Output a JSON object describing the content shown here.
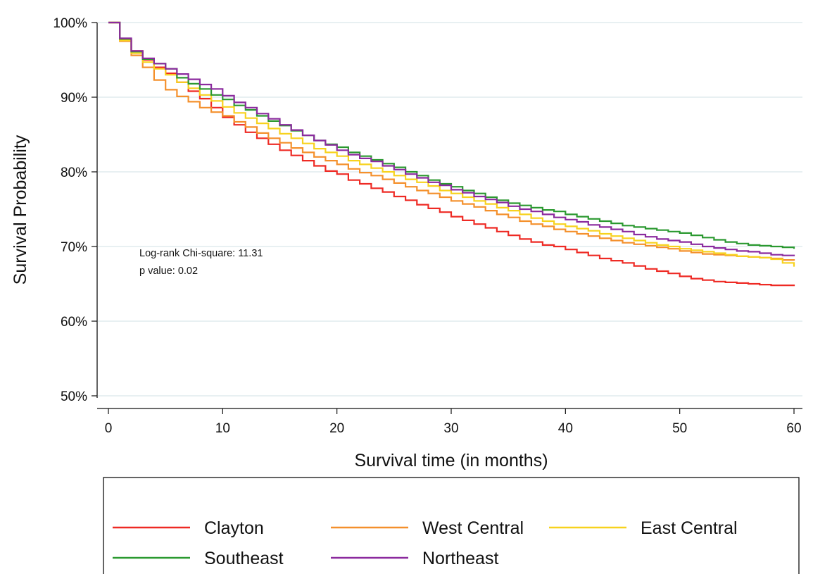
{
  "chart_data": {
    "type": "line",
    "title": "",
    "xlabel": "Survival time (in months)",
    "ylabel": "Survival Probability",
    "xlim": [
      0,
      60
    ],
    "ylim": [
      0.5,
      1.0
    ],
    "xticks": [
      0,
      10,
      20,
      30,
      40,
      50,
      60
    ],
    "yticks": [
      {
        "value": 0.5,
        "label": "50%"
      },
      {
        "value": 0.6,
        "label": "60%"
      },
      {
        "value": 0.7,
        "label": "70%"
      },
      {
        "value": 0.8,
        "label": "80%"
      },
      {
        "value": 0.9,
        "label": "90%"
      },
      {
        "value": 1.0,
        "label": "100%"
      }
    ],
    "grid": "horizontal",
    "step": true,
    "legend_position": "bottom",
    "x": [
      0,
      1,
      2,
      3,
      4,
      5,
      6,
      7,
      8,
      9,
      10,
      11,
      12,
      13,
      14,
      15,
      16,
      17,
      18,
      19,
      20,
      21,
      22,
      23,
      24,
      25,
      26,
      27,
      28,
      29,
      30,
      31,
      32,
      33,
      34,
      35,
      36,
      37,
      38,
      39,
      40,
      41,
      42,
      43,
      44,
      45,
      46,
      47,
      48,
      49,
      50,
      51,
      52,
      53,
      54,
      55,
      56,
      57,
      58,
      59,
      60
    ],
    "series": [
      {
        "name": "Clayton",
        "color": "#ee2a24",
        "values": [
          1.0,
          0.977,
          0.962,
          0.95,
          0.94,
          0.932,
          0.92,
          0.908,
          0.898,
          0.886,
          0.873,
          0.863,
          0.853,
          0.845,
          0.837,
          0.829,
          0.822,
          0.815,
          0.808,
          0.801,
          0.797,
          0.789,
          0.784,
          0.778,
          0.773,
          0.767,
          0.762,
          0.756,
          0.751,
          0.746,
          0.74,
          0.735,
          0.73,
          0.725,
          0.72,
          0.715,
          0.71,
          0.706,
          0.702,
          0.7,
          0.696,
          0.692,
          0.688,
          0.684,
          0.681,
          0.678,
          0.674,
          0.67,
          0.667,
          0.664,
          0.66,
          0.657,
          0.655,
          0.653,
          0.652,
          0.651,
          0.65,
          0.649,
          0.648,
          0.648,
          0.647
        ]
      },
      {
        "name": "West Central",
        "color": "#f4902c",
        "values": [
          1.0,
          0.975,
          0.956,
          0.94,
          0.923,
          0.91,
          0.901,
          0.894,
          0.886,
          0.88,
          0.875,
          0.867,
          0.86,
          0.852,
          0.845,
          0.839,
          0.832,
          0.826,
          0.82,
          0.815,
          0.81,
          0.804,
          0.799,
          0.795,
          0.79,
          0.785,
          0.78,
          0.775,
          0.771,
          0.766,
          0.761,
          0.757,
          0.753,
          0.748,
          0.743,
          0.739,
          0.734,
          0.73,
          0.727,
          0.723,
          0.72,
          0.717,
          0.714,
          0.711,
          0.708,
          0.705,
          0.703,
          0.701,
          0.699,
          0.697,
          0.694,
          0.692,
          0.69,
          0.689,
          0.688,
          0.687,
          0.686,
          0.685,
          0.684,
          0.682,
          0.681
        ]
      },
      {
        "name": "East Central",
        "color": "#f7d21e",
        "values": [
          1.0,
          0.976,
          0.959,
          0.947,
          0.938,
          0.93,
          0.92,
          0.912,
          0.903,
          0.895,
          0.887,
          0.879,
          0.872,
          0.865,
          0.858,
          0.851,
          0.845,
          0.838,
          0.831,
          0.826,
          0.821,
          0.815,
          0.81,
          0.805,
          0.8,
          0.795,
          0.79,
          0.786,
          0.781,
          0.775,
          0.771,
          0.766,
          0.761,
          0.757,
          0.752,
          0.748,
          0.743,
          0.738,
          0.734,
          0.73,
          0.727,
          0.724,
          0.721,
          0.717,
          0.714,
          0.711,
          0.708,
          0.705,
          0.702,
          0.7,
          0.697,
          0.695,
          0.693,
          0.691,
          0.689,
          0.687,
          0.686,
          0.685,
          0.683,
          0.678,
          0.673
        ]
      },
      {
        "name": "Southeast",
        "color": "#2b9930",
        "values": [
          1.0,
          0.978,
          0.961,
          0.951,
          0.945,
          0.938,
          0.926,
          0.918,
          0.911,
          0.903,
          0.897,
          0.889,
          0.883,
          0.875,
          0.868,
          0.862,
          0.855,
          0.849,
          0.842,
          0.837,
          0.833,
          0.826,
          0.821,
          0.816,
          0.811,
          0.806,
          0.8,
          0.795,
          0.789,
          0.784,
          0.78,
          0.775,
          0.771,
          0.766,
          0.762,
          0.758,
          0.755,
          0.752,
          0.749,
          0.747,
          0.743,
          0.74,
          0.737,
          0.734,
          0.731,
          0.728,
          0.726,
          0.724,
          0.722,
          0.72,
          0.718,
          0.715,
          0.712,
          0.709,
          0.706,
          0.704,
          0.702,
          0.701,
          0.7,
          0.699,
          0.697
        ]
      },
      {
        "name": "Northeast",
        "color": "#8b2a9e",
        "values": [
          1.0,
          0.979,
          0.962,
          0.952,
          0.945,
          0.938,
          0.931,
          0.924,
          0.917,
          0.911,
          0.902,
          0.893,
          0.886,
          0.878,
          0.871,
          0.863,
          0.856,
          0.849,
          0.842,
          0.836,
          0.829,
          0.823,
          0.818,
          0.814,
          0.808,
          0.803,
          0.797,
          0.792,
          0.786,
          0.782,
          0.776,
          0.772,
          0.767,
          0.763,
          0.759,
          0.754,
          0.75,
          0.747,
          0.743,
          0.739,
          0.736,
          0.733,
          0.729,
          0.726,
          0.723,
          0.72,
          0.716,
          0.713,
          0.71,
          0.708,
          0.706,
          0.703,
          0.7,
          0.698,
          0.696,
          0.694,
          0.693,
          0.691,
          0.689,
          0.688,
          0.687
        ]
      }
    ],
    "annotations": [
      "Log-rank Chi-square: 11.31",
      "p value: 0.02"
    ]
  }
}
